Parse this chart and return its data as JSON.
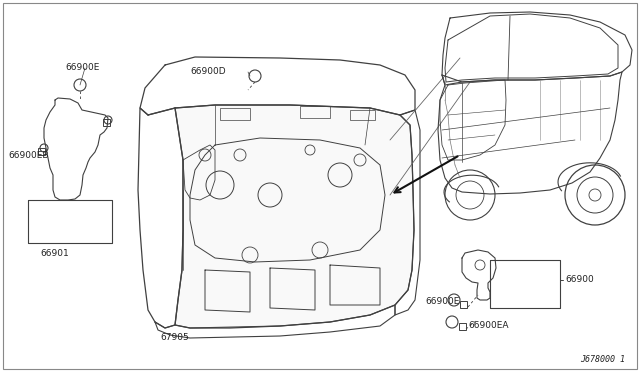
{
  "background_color": "#ffffff",
  "line_color": "#404040",
  "text_color": "#222222",
  "diagram_number": "J678000 1",
  "labels": {
    "66900E_top": "66900E",
    "66900D": "66900D",
    "66900EB": "66900EB",
    "66901": "66901",
    "67905": "67905",
    "66900E_bottom": "66900E",
    "66900EA": "66900EA",
    "66900": "66900"
  },
  "figsize": [
    6.4,
    3.72
  ],
  "dpi": 100
}
